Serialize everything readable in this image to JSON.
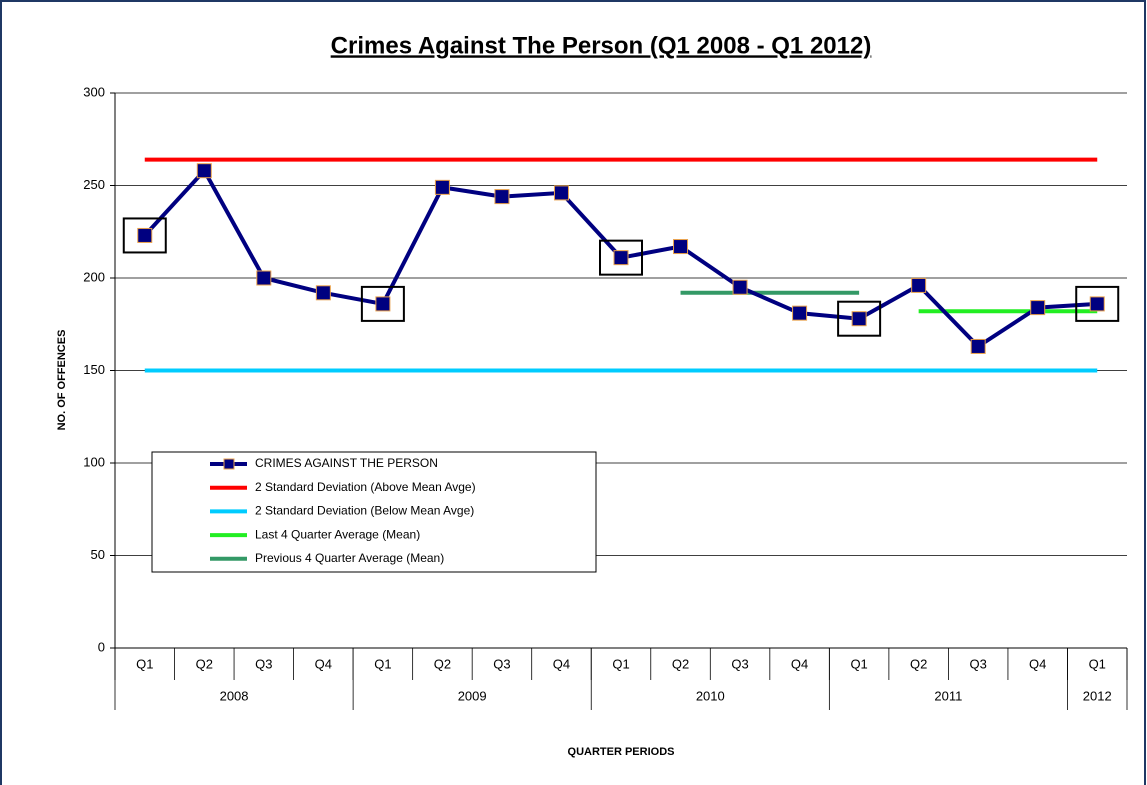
{
  "chart_data": {
    "type": "line",
    "title": "Crimes Against The Person (Q1 2008 - Q1 2012)",
    "y_label": "NO. OF OFFENCES",
    "x_label": "QUARTER PERIODS",
    "categories": [
      "Q1",
      "Q2",
      "Q3",
      "Q4",
      "Q1",
      "Q2",
      "Q3",
      "Q4",
      "Q1",
      "Q2",
      "Q3",
      "Q4",
      "Q1",
      "Q2",
      "Q3",
      "Q4",
      "Q1"
    ],
    "x_groups": [
      {
        "name": "2008",
        "count": 4
      },
      {
        "name": "2009",
        "count": 4
      },
      {
        "name": "2010",
        "count": 4
      },
      {
        "name": "2011",
        "count": 4
      },
      {
        "name": "2012",
        "count": 1
      }
    ],
    "series": [
      {
        "name": "CRIMES AGAINST THE PERSON",
        "color": "#000080",
        "marker": "square",
        "marker_edge": "#e8a04a",
        "values": [
          223,
          258,
          200,
          192,
          186,
          249,
          244,
          246,
          211,
          217,
          195,
          181,
          178,
          196,
          163,
          184,
          186
        ]
      },
      {
        "name": "2 Standard Deviation (Above Mean Avge)",
        "color": "#ff0000",
        "values": [
          264,
          264,
          264,
          264,
          264,
          264,
          264,
          264,
          264,
          264,
          264,
          264,
          264,
          264,
          264,
          264,
          264
        ]
      },
      {
        "name": "2 Standard Deviation (Below Mean Avge)",
        "color": "#00ccff",
        "values": [
          150,
          150,
          150,
          150,
          150,
          150,
          150,
          150,
          150,
          150,
          150,
          150,
          150,
          150,
          150,
          150,
          150
        ]
      },
      {
        "name": "Last 4 Quarter Average (Mean)",
        "color": "#22ee22",
        "values": [
          null,
          null,
          null,
          null,
          null,
          null,
          null,
          null,
          null,
          null,
          null,
          null,
          null,
          182,
          182,
          182,
          182
        ]
      },
      {
        "name": "Previous 4 Quarter Average (Mean)",
        "color": "#339966",
        "values": [
          null,
          null,
          null,
          null,
          null,
          null,
          null,
          null,
          null,
          192,
          192,
          192,
          192,
          null,
          null,
          null,
          null
        ]
      }
    ],
    "ylim": [
      0,
      300
    ],
    "yticks": [
      0,
      50,
      100,
      150,
      200,
      250,
      300
    ],
    "grid": true,
    "legend": "lower left"
  }
}
